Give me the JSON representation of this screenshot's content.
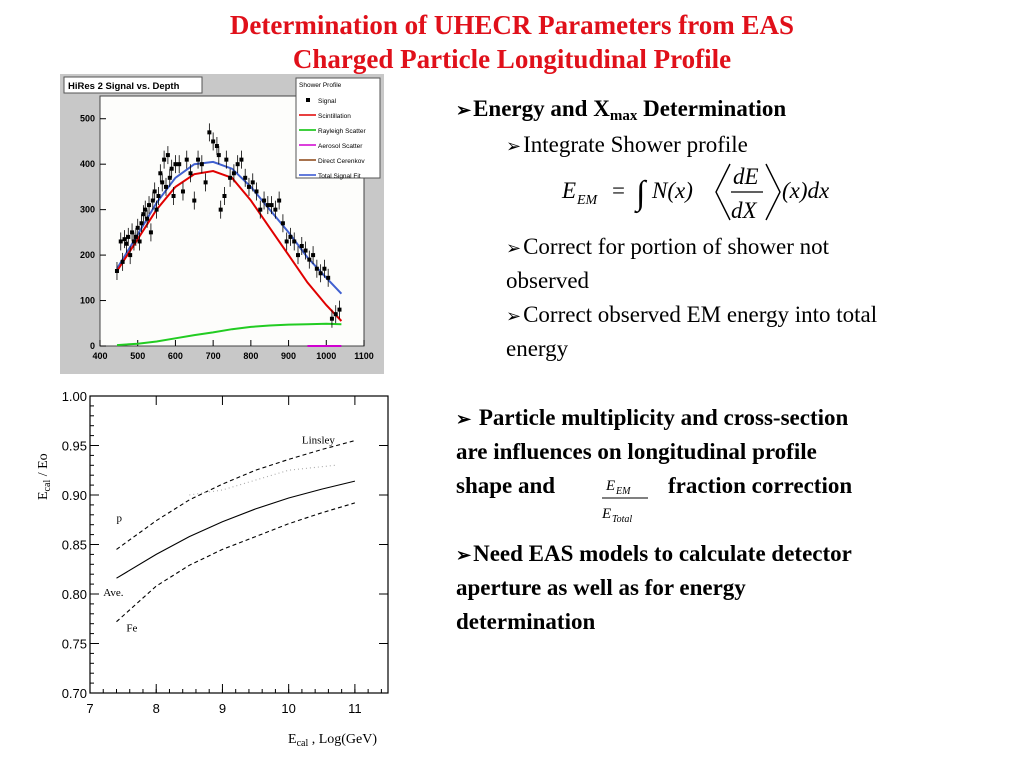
{
  "title": {
    "line1": "Determination of UHECR Parameters from EAS",
    "line2": "Charged Particle Longitudinal Profile"
  },
  "bullets": {
    "energy_xmax_pre": "Energy and X",
    "energy_xmax_sub": "max",
    "energy_xmax_post": " Determination",
    "integrate": "Integrate Shower profile",
    "correct_portion_1": "Correct for portion of shower not",
    "correct_portion_2": "observed",
    "correct_em_1": "Correct observed EM energy into total",
    "correct_em_2": "energy",
    "particle_1": "Particle multiplicity and cross-section",
    "particle_2": "are influences on  longitudinal profile",
    "particle_3_pre": "shape and",
    "particle_3_post": "fraction correction",
    "need_1": "Need EAS models to calculate detector",
    "need_2": "aperture as well as for energy",
    "need_3": "determination"
  },
  "equation": {
    "lhs": "E",
    "lhs_sub": "EM",
    "equals": "=",
    "integral": "∫",
    "n_of_x": "N(x)",
    "num": "dE",
    "den": "dX",
    "tail": "(x)dx"
  },
  "mini_fraction": {
    "num": "E",
    "num_sub": "EM",
    "den": "E",
    "den_sub": "Total"
  },
  "chart_data": [
    {
      "type": "scatter",
      "title": "HiRes 2 Signal vs. Depth",
      "xlim": [
        400,
        1100
      ],
      "ylim": [
        0,
        550
      ],
      "x_ticks": [
        "400",
        "500",
        "600",
        "700",
        "800",
        "900",
        "1000",
        "1100"
      ],
      "y_ticks": [
        "0",
        "100",
        "200",
        "300",
        "400",
        "500"
      ],
      "legend_title": "Shower Profile",
      "legend": [
        {
          "name": "Signal",
          "color": "#000000"
        },
        {
          "name": "Scintillation",
          "color": "#e00000"
        },
        {
          "name": "Rayleigh Scatter",
          "color": "#00c000"
        },
        {
          "name": "Aerosol Scatter",
          "color": "#d000d0"
        },
        {
          "name": "Direct Cerenkov",
          "color": "#8b4513"
        },
        {
          "name": "Total Signal Fit",
          "color": "#3050d0"
        }
      ],
      "signal_points": [
        [
          445,
          165
        ],
        [
          455,
          230
        ],
        [
          460,
          185
        ],
        [
          465,
          235
        ],
        [
          470,
          225
        ],
        [
          475,
          240
        ],
        [
          480,
          200
        ],
        [
          485,
          250
        ],
        [
          490,
          230
        ],
        [
          495,
          240
        ],
        [
          500,
          260
        ],
        [
          505,
          230
        ],
        [
          510,
          270
        ],
        [
          515,
          290
        ],
        [
          520,
          300
        ],
        [
          525,
          280
        ],
        [
          530,
          310
        ],
        [
          535,
          250
        ],
        [
          540,
          320
        ],
        [
          545,
          340
        ],
        [
          550,
          300
        ],
        [
          555,
          330
        ],
        [
          560,
          380
        ],
        [
          565,
          360
        ],
        [
          570,
          410
        ],
        [
          575,
          350
        ],
        [
          580,
          420
        ],
        [
          585,
          370
        ],
        [
          590,
          390
        ],
        [
          595,
          330
        ],
        [
          600,
          400
        ],
        [
          610,
          400
        ],
        [
          620,
          340
        ],
        [
          630,
          410
        ],
        [
          640,
          380
        ],
        [
          650,
          320
        ],
        [
          660,
          410
        ],
        [
          670,
          400
        ],
        [
          680,
          360
        ],
        [
          690,
          470
        ],
        [
          700,
          450
        ],
        [
          710,
          440
        ],
        [
          715,
          420
        ],
        [
          720,
          300
        ],
        [
          730,
          330
        ],
        [
          735,
          410
        ],
        [
          745,
          370
        ],
        [
          755,
          380
        ],
        [
          765,
          400
        ],
        [
          775,
          410
        ],
        [
          785,
          370
        ],
        [
          795,
          350
        ],
        [
          805,
          360
        ],
        [
          815,
          340
        ],
        [
          825,
          300
        ],
        [
          835,
          320
        ],
        [
          845,
          310
        ],
        [
          855,
          310
        ],
        [
          865,
          300
        ],
        [
          875,
          320
        ],
        [
          885,
          270
        ],
        [
          895,
          230
        ],
        [
          905,
          240
        ],
        [
          915,
          230
        ],
        [
          925,
          200
        ],
        [
          935,
          220
        ],
        [
          945,
          210
        ],
        [
          955,
          190
        ],
        [
          965,
          200
        ],
        [
          975,
          170
        ],
        [
          985,
          160
        ],
        [
          995,
          170
        ],
        [
          1005,
          150
        ],
        [
          1015,
          60
        ],
        [
          1025,
          70
        ],
        [
          1035,
          80
        ]
      ],
      "scintillation_fit": [
        [
          445,
          165
        ],
        [
          500,
          235
        ],
        [
          550,
          300
        ],
        [
          600,
          350
        ],
        [
          650,
          378
        ],
        [
          700,
          385
        ],
        [
          750,
          370
        ],
        [
          800,
          320
        ],
        [
          850,
          260
        ],
        [
          900,
          200
        ],
        [
          950,
          140
        ],
        [
          1000,
          90
        ],
        [
          1040,
          55
        ]
      ],
      "total_fit": [
        [
          445,
          170
        ],
        [
          500,
          245
        ],
        [
          550,
          315
        ],
        [
          600,
          370
        ],
        [
          650,
          400
        ],
        [
          700,
          405
        ],
        [
          750,
          390
        ],
        [
          800,
          350
        ],
        [
          850,
          300
        ],
        [
          900,
          250
        ],
        [
          950,
          195
        ],
        [
          1000,
          150
        ],
        [
          1040,
          115
        ]
      ],
      "rayleigh_fit": [
        [
          445,
          2
        ],
        [
          500,
          5
        ],
        [
          550,
          10
        ],
        [
          600,
          17
        ],
        [
          650,
          24
        ],
        [
          700,
          30
        ],
        [
          750,
          37
        ],
        [
          800,
          42
        ],
        [
          850,
          45
        ],
        [
          900,
          47
        ],
        [
          950,
          48
        ],
        [
          1000,
          49
        ],
        [
          1040,
          48
        ]
      ],
      "aerosol_fit": [
        [
          950,
          0
        ],
        [
          1040,
          0
        ]
      ]
    },
    {
      "type": "line",
      "xlabel": "E",
      "xlabel_sub": "cal",
      "xlabel_post": ", Log(GeV)",
      "ylabel": "E",
      "ylabel_sub": "cal",
      "ylabel_post": "/ Eo",
      "xlim": [
        7,
        11.5
      ],
      "ylim": [
        0.7,
        1.0
      ],
      "x_ticks": [
        "7",
        "8",
        "9",
        "10",
        "11"
      ],
      "y_ticks": [
        "0.70",
        "0.75",
        "0.80",
        "0.85",
        "0.90",
        "0.95",
        "1.00"
      ],
      "series": [
        {
          "name": "Linsley",
          "style": "dashed",
          "points": [
            [
              7.4,
              0.845
            ],
            [
              8,
              0.874
            ],
            [
              8.5,
              0.895
            ],
            [
              9,
              0.911
            ],
            [
              9.5,
              0.925
            ],
            [
              10,
              0.936
            ],
            [
              10.5,
              0.946
            ],
            [
              11,
              0.955
            ]
          ]
        },
        {
          "name": "Ave.",
          "style": "solid",
          "points": [
            [
              7.4,
              0.816
            ],
            [
              8,
              0.84
            ],
            [
              8.5,
              0.858
            ],
            [
              9,
              0.873
            ],
            [
              9.5,
              0.886
            ],
            [
              10,
              0.897
            ],
            [
              10.5,
              0.906
            ],
            [
              11,
              0.914
            ]
          ]
        },
        {
          "name": "Fe",
          "style": "dashed",
          "points": [
            [
              7.4,
              0.772
            ],
            [
              8,
              0.808
            ],
            [
              8.5,
              0.829
            ],
            [
              9,
              0.845
            ],
            [
              9.5,
              0.858
            ],
            [
              10,
              0.871
            ],
            [
              10.5,
              0.882
            ],
            [
              11,
              0.892
            ]
          ]
        },
        {
          "name": "p",
          "style": "dotted",
          "points": [
            [
              8.5,
              0.9
            ],
            [
              9,
              0.905
            ],
            [
              10,
              0.925
            ],
            [
              10.7,
              0.93
            ]
          ]
        }
      ],
      "labels": [
        "Linsley",
        "p",
        "Ave.",
        "Fe"
      ]
    }
  ]
}
